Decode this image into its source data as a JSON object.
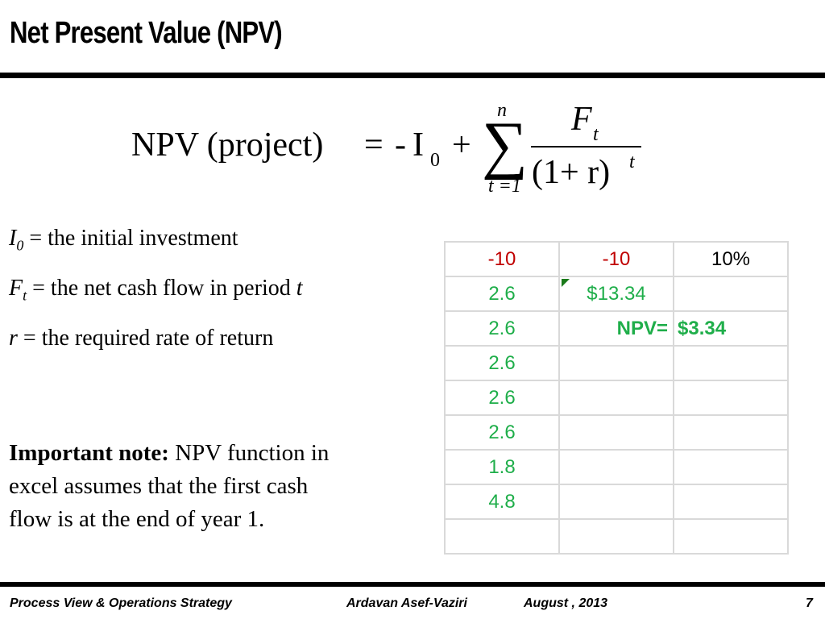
{
  "title": "Net Present Value (NPV)",
  "formula": {
    "lhs": "NPV (project)",
    "equals": "=",
    "minus": "-",
    "investment_symbol": "I",
    "investment_sub": "0",
    "plus": "+",
    "sum_upper": "n",
    "sum_lower": "t =1",
    "numerator": "F",
    "numerator_sub": "t",
    "denominator": "(1+ r)",
    "denominator_exp": "t"
  },
  "definitions": [
    {
      "symbol": "I",
      "sub": "0",
      "text": " = the initial investment"
    },
    {
      "symbol": "F",
      "sub": "t",
      "text": " = the net cash flow in period ",
      "tail": "t"
    },
    {
      "symbol": "r",
      "sub": "",
      "text": " = the required rate of return"
    }
  ],
  "note": {
    "label": "Important note:",
    "text": " NPV function in excel assumes that the first cash flow is at the end of year 1."
  },
  "spreadsheet": {
    "rows": [
      [
        "-10",
        "-10",
        "10%"
      ],
      [
        "2.6",
        "$13.34",
        ""
      ],
      [
        "2.6",
        "NPV=",
        "$3.34"
      ],
      [
        "2.6",
        "",
        ""
      ],
      [
        "2.6",
        "",
        ""
      ],
      [
        "2.6",
        "",
        ""
      ],
      [
        "1.8",
        "",
        ""
      ],
      [
        "4.8",
        "",
        ""
      ],
      [
        "",
        "",
        ""
      ]
    ],
    "colors": {
      "negative": "#c00000",
      "positive": "#1fae4a",
      "plain": "#000000"
    }
  },
  "footer": {
    "course": "Process View & Operations Strategy",
    "author": "Ardavan Asef-Vaziri",
    "date": "August , 2013",
    "page": "7"
  }
}
